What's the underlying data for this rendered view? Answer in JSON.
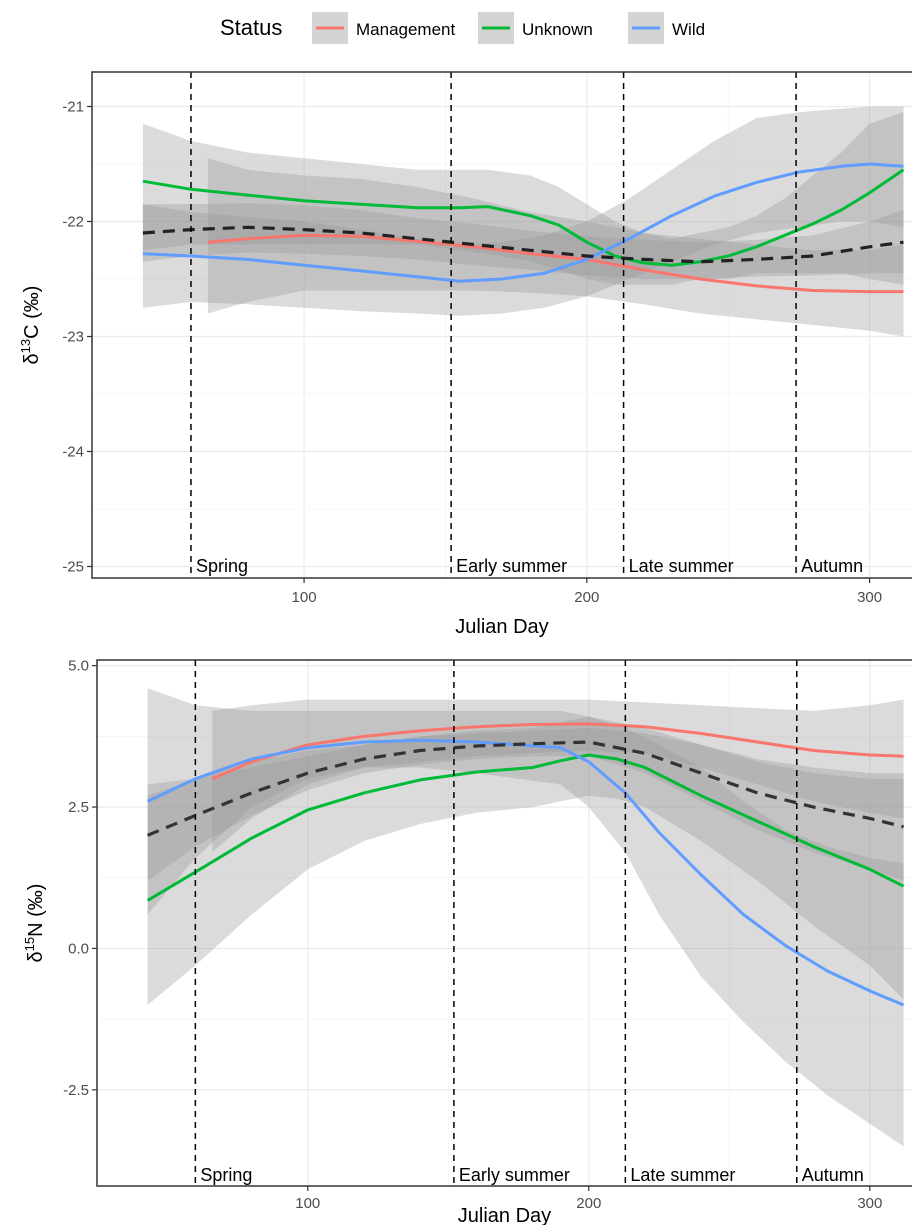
{
  "legend": {
    "title": "Status",
    "entries": [
      {
        "label": "Management",
        "color": "#F8766D"
      },
      {
        "label": "Unknown",
        "color": "#00BA38"
      },
      {
        "label": "Wild",
        "color": "#619CFF"
      }
    ]
  },
  "colors": {
    "management": "#F8766D",
    "unknown": "#00BA38",
    "wild": "#619CFF",
    "overall": "#333333",
    "ribbon": "#999999",
    "panel_border": "#333333",
    "grid": "#EBEBEB"
  },
  "chart_data": [
    {
      "type": "line",
      "xlabel": "Julian Day",
      "ylabel": "δ13C (‰)",
      "ylabel_main": "δ",
      "ylabel_sup": "13",
      "ylabel_rest": "C (‰)",
      "xlim": [
        25,
        315
      ],
      "ylim": [
        -25.1,
        -20.7
      ],
      "xticks": [
        100,
        200,
        300
      ],
      "yticks": [
        -25,
        -24,
        -23,
        -22,
        -21
      ],
      "ytick_labels": [
        "-25",
        "-24",
        "-23",
        "-22",
        "-21"
      ],
      "grid": true,
      "season_lines": [
        60,
        152,
        213,
        274
      ],
      "season_labels": [
        {
          "x": 60,
          "label": "Spring"
        },
        {
          "x": 152,
          "label": "Early summer"
        },
        {
          "x": 213,
          "label": "Late summer"
        },
        {
          "x": 274,
          "label": "Autumn"
        }
      ],
      "series": [
        {
          "name": "Management",
          "color": "#F8766D",
          "x": [
            66,
            80,
            100,
            120,
            140,
            160,
            180,
            200,
            220,
            240,
            260,
            280,
            300,
            312
          ],
          "y": [
            -22.18,
            -22.15,
            -22.12,
            -22.13,
            -22.17,
            -22.22,
            -22.28,
            -22.33,
            -22.42,
            -22.5,
            -22.56,
            -22.6,
            -22.61,
            -22.61
          ],
          "lo": [
            -22.8,
            -22.7,
            -22.6,
            -22.6,
            -22.6,
            -22.6,
            -22.62,
            -22.65,
            -22.72,
            -22.8,
            -22.85,
            -22.9,
            -22.95,
            -23.0
          ],
          "hi": [
            -21.45,
            -21.55,
            -21.6,
            -21.63,
            -21.7,
            -21.8,
            -21.92,
            -22.0,
            -22.1,
            -22.15,
            -22.2,
            -22.25,
            -22.25,
            -22.2
          ]
        },
        {
          "name": "Unknown",
          "color": "#00BA38",
          "x": [
            43,
            60,
            80,
            100,
            120,
            140,
            155,
            165,
            180,
            190,
            200,
            210,
            220,
            230,
            240,
            250,
            260,
            270,
            280,
            290,
            300,
            312
          ],
          "y": [
            -21.65,
            -21.72,
            -21.77,
            -21.82,
            -21.85,
            -21.88,
            -21.88,
            -21.87,
            -21.95,
            -22.03,
            -22.18,
            -22.3,
            -22.36,
            -22.38,
            -22.35,
            -22.3,
            -22.22,
            -22.12,
            -22.02,
            -21.9,
            -21.75,
            -21.55
          ],
          "lo": [
            -22.25,
            -22.2,
            -22.2,
            -22.2,
            -22.2,
            -22.2,
            -22.25,
            -22.28,
            -22.35,
            -22.42,
            -22.5,
            -22.55,
            -22.55,
            -22.55,
            -22.5,
            -22.5,
            -22.45,
            -22.45,
            -22.45,
            -22.45,
            -22.5,
            -22.55
          ],
          "hi": [
            -21.15,
            -21.3,
            -21.4,
            -21.45,
            -21.5,
            -21.55,
            -21.55,
            -21.55,
            -21.6,
            -21.7,
            -21.85,
            -22.0,
            -22.1,
            -22.15,
            -22.1,
            -22.05,
            -21.95,
            -21.8,
            -21.6,
            -21.4,
            -21.15,
            -21.05
          ]
        },
        {
          "name": "Wild",
          "color": "#619CFF",
          "x": [
            43,
            60,
            80,
            100,
            120,
            140,
            155,
            170,
            185,
            200,
            215,
            230,
            245,
            260,
            275,
            290,
            300,
            312
          ],
          "y": [
            -22.28,
            -22.3,
            -22.33,
            -22.38,
            -22.43,
            -22.48,
            -22.52,
            -22.5,
            -22.45,
            -22.33,
            -22.15,
            -21.95,
            -21.78,
            -21.66,
            -21.57,
            -21.52,
            -21.5,
            -21.52
          ],
          "lo": [
            -22.75,
            -22.7,
            -22.72,
            -22.75,
            -22.78,
            -22.8,
            -22.82,
            -22.8,
            -22.75,
            -22.65,
            -22.5,
            -22.35,
            -22.2,
            -22.1,
            -22.05,
            -22.0,
            -22.0,
            -22.05
          ],
          "hi": [
            -21.85,
            -21.92,
            -21.96,
            -22.0,
            -22.07,
            -22.15,
            -22.2,
            -22.18,
            -22.12,
            -22.0,
            -21.8,
            -21.55,
            -21.3,
            -21.1,
            -21.05,
            -21.02,
            -21.0,
            -21.0
          ]
        },
        {
          "name": "",
          "color": "#222222",
          "dashed": true,
          "x": [
            43,
            60,
            80,
            100,
            120,
            140,
            160,
            180,
            200,
            220,
            240,
            260,
            280,
            300,
            312
          ],
          "y": [
            -22.1,
            -22.07,
            -22.05,
            -22.07,
            -22.1,
            -22.15,
            -22.2,
            -22.25,
            -22.3,
            -22.33,
            -22.35,
            -22.33,
            -22.3,
            -22.22,
            -22.18
          ],
          "lo": [
            -22.35,
            -22.3,
            -22.27,
            -22.28,
            -22.3,
            -22.33,
            -22.38,
            -22.42,
            -22.47,
            -22.5,
            -22.5,
            -22.48,
            -22.47,
            -22.45,
            -22.45
          ],
          "hi": [
            -21.85,
            -21.85,
            -21.84,
            -21.86,
            -21.9,
            -21.97,
            -22.02,
            -22.08,
            -22.13,
            -22.16,
            -22.18,
            -22.16,
            -22.12,
            -22.0,
            -21.9
          ]
        }
      ]
    },
    {
      "type": "line",
      "xlabel": "Julian Day",
      "ylabel": "δ15N (‰)",
      "ylabel_main": "δ",
      "ylabel_sup": "15",
      "ylabel_rest": "N (‰)",
      "xlim": [
        25,
        315
      ],
      "ylim": [
        -4.2,
        5.1
      ],
      "xticks": [
        100,
        200,
        300
      ],
      "yticks": [
        -2.5,
        0.0,
        2.5,
        5.0
      ],
      "ytick_labels": [
        "-2.5",
        "0.0",
        "2.5",
        "5.0"
      ],
      "grid": true,
      "season_lines": [
        60,
        152,
        213,
        274
      ],
      "season_labels": [
        {
          "x": 60,
          "label": "Spring"
        },
        {
          "x": 152,
          "label": "Early summer"
        },
        {
          "x": 213,
          "label": "Late summer"
        },
        {
          "x": 274,
          "label": "Autumn"
        }
      ],
      "series": [
        {
          "name": "Management",
          "color": "#F8766D",
          "x": [
            66,
            80,
            100,
            120,
            140,
            160,
            180,
            200,
            220,
            240,
            260,
            280,
            300,
            312
          ],
          "y": [
            3.0,
            3.3,
            3.6,
            3.75,
            3.85,
            3.92,
            3.96,
            3.97,
            3.92,
            3.8,
            3.65,
            3.5,
            3.42,
            3.4
          ],
          "lo": [
            1.7,
            2.3,
            2.9,
            3.2,
            3.3,
            3.4,
            3.45,
            3.5,
            3.45,
            3.2,
            2.9,
            2.6,
            2.4,
            2.3
          ],
          "hi": [
            4.2,
            4.3,
            4.4,
            4.4,
            4.4,
            4.4,
            4.4,
            4.4,
            4.35,
            4.3,
            4.25,
            4.2,
            4.3,
            4.4
          ]
        },
        {
          "name": "Unknown",
          "color": "#00BA38",
          "x": [
            43,
            60,
            80,
            100,
            120,
            140,
            160,
            180,
            190,
            200,
            210,
            220,
            230,
            240,
            260,
            280,
            300,
            312
          ],
          "y": [
            0.85,
            1.35,
            1.95,
            2.45,
            2.75,
            2.98,
            3.12,
            3.2,
            3.32,
            3.42,
            3.35,
            3.2,
            2.95,
            2.7,
            2.25,
            1.8,
            1.4,
            1.1
          ],
          "lo": [
            -1.0,
            -0.3,
            0.6,
            1.4,
            1.9,
            2.2,
            2.4,
            2.5,
            2.6,
            2.7,
            2.65,
            2.5,
            2.2,
            1.9,
            1.2,
            0.4,
            -0.3,
            -0.9
          ],
          "hi": [
            2.7,
            3.0,
            3.3,
            3.5,
            3.6,
            3.75,
            3.85,
            3.9,
            4.0,
            4.1,
            4.0,
            3.9,
            3.75,
            3.6,
            3.3,
            3.1,
            3.0,
            3.0
          ]
        },
        {
          "name": "Wild",
          "color": "#619CFF",
          "x": [
            43,
            60,
            80,
            100,
            120,
            140,
            160,
            175,
            190,
            200,
            213,
            225,
            240,
            255,
            270,
            285,
            300,
            312
          ],
          "y": [
            2.6,
            3.0,
            3.35,
            3.55,
            3.65,
            3.68,
            3.65,
            3.6,
            3.55,
            3.3,
            2.75,
            2.05,
            1.3,
            0.6,
            0.05,
            -0.4,
            -0.75,
            -1.0
          ],
          "lo": [
            0.6,
            1.6,
            2.5,
            3.0,
            3.2,
            3.2,
            3.1,
            3.0,
            2.9,
            2.5,
            1.7,
            0.6,
            -0.5,
            -1.3,
            -2.0,
            -2.6,
            -3.1,
            -3.5
          ],
          "hi": [
            4.6,
            4.3,
            4.2,
            4.2,
            4.2,
            4.2,
            4.2,
            4.2,
            4.2,
            4.1,
            3.9,
            3.6,
            3.2,
            2.6,
            2.1,
            1.8,
            1.6,
            1.5
          ]
        },
        {
          "name": "",
          "color": "#333333",
          "dashed": true,
          "x": [
            43,
            60,
            80,
            100,
            120,
            140,
            160,
            180,
            200,
            220,
            240,
            260,
            280,
            300,
            312
          ],
          "y": [
            2.0,
            2.35,
            2.75,
            3.1,
            3.35,
            3.5,
            3.58,
            3.62,
            3.65,
            3.45,
            3.1,
            2.75,
            2.5,
            2.3,
            2.15
          ],
          "lo": [
            1.2,
            1.8,
            2.35,
            2.8,
            3.1,
            3.25,
            3.35,
            3.4,
            3.4,
            3.1,
            2.6,
            2.1,
            1.7,
            1.4,
            1.2
          ],
          "hi": [
            2.9,
            3.0,
            3.2,
            3.4,
            3.6,
            3.75,
            3.8,
            3.85,
            3.9,
            3.8,
            3.6,
            3.35,
            3.2,
            3.1,
            3.1
          ]
        }
      ]
    }
  ]
}
